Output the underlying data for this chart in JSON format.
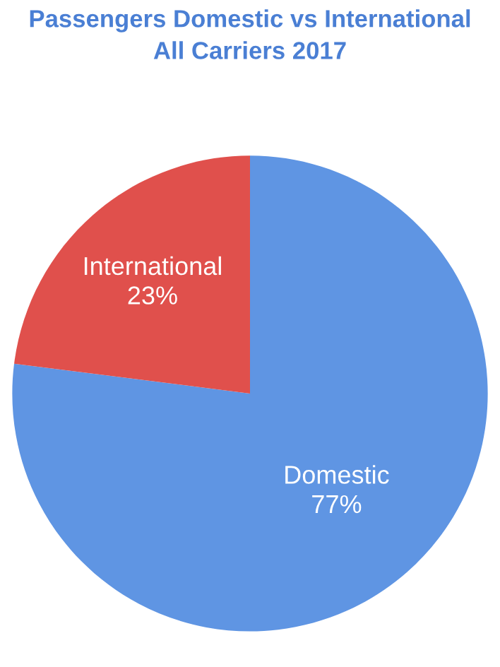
{
  "chart_data": {
    "type": "pie",
    "title": "Passengers Domestic vs International\nAll Carriers 2017",
    "categories": [
      "Domestic",
      "International"
    ],
    "values": [
      77,
      23
    ],
    "colors": [
      "#5f95e3",
      "#e0504c"
    ],
    "value_labels": [
      "77%",
      "23%"
    ]
  }
}
